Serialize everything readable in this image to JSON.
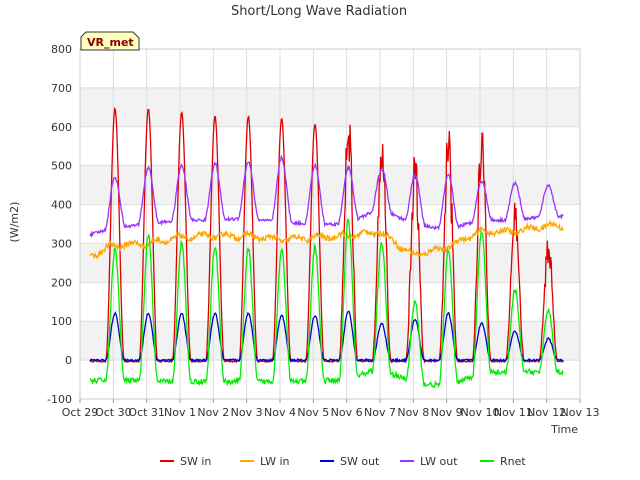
{
  "chart_data": {
    "type": "line",
    "title": "Short/Long Wave Radiation",
    "tag": "VR_met",
    "xlabel": "Time",
    "ylabel": "(W/m2)",
    "ylim": [
      -100,
      800
    ],
    "yticks": [
      -100,
      0,
      100,
      200,
      300,
      400,
      500,
      600,
      700,
      800
    ],
    "xlim": [
      0,
      15
    ],
    "xticks": [
      0,
      1,
      2,
      3,
      4,
      5,
      6,
      7,
      8,
      9,
      10,
      11,
      12,
      13,
      14,
      15
    ],
    "xtick_labels": [
      "Oct 29",
      "Oct 30",
      "Oct 31",
      "Nov 1",
      "Nov 2",
      "Nov 3",
      "Nov 4",
      "Nov 5",
      "Nov 6",
      "Nov 7",
      "Nov 8",
      "Nov 9",
      "Nov 10",
      "Nov 11",
      "Nov 12",
      "Nov 13"
    ],
    "x_data_start": 0.3,
    "x_data_end": 14.5,
    "grid": true,
    "legend_position": "bottom",
    "days": [
      1,
      2,
      3,
      4,
      5,
      6,
      7,
      8,
      9,
      10,
      11,
      12,
      13,
      14
    ],
    "series": [
      {
        "name": "SW in",
        "color": "#dd0000",
        "key": "sw_in",
        "night": -3,
        "day_peaks": [
          650,
          650,
          640,
          630,
          630,
          625,
          610,
          700,
          650,
          550,
          615,
          635,
          420,
          330
        ]
      },
      {
        "name": "LW in",
        "color": "#ffa500",
        "key": "lw_in",
        "daily_levels": [
          255,
          295,
          300,
          315,
          320,
          320,
          310,
          315,
          320,
          330,
          270,
          290,
          330,
          330,
          345
        ]
      },
      {
        "name": "SW out",
        "color": "#0000cc",
        "key": "sw_out",
        "night": 0,
        "day_peaks": [
          120,
          120,
          120,
          120,
          120,
          115,
          115,
          125,
          95,
          105,
          120,
          95,
          75,
          55
        ]
      },
      {
        "name": "LW out",
        "color": "#9933ff",
        "key": "lw_out",
        "night_levels": [
          315,
          340,
          350,
          360,
          360,
          365,
          355,
          350,
          350,
          390,
          350,
          335,
          360,
          360,
          370
        ],
        "day_peaks": [
          470,
          495,
          500,
          505,
          510,
          520,
          500,
          495,
          490,
          475,
          475,
          460,
          455,
          450
        ]
      },
      {
        "name": "Rnet",
        "color": "#00ee00",
        "key": "rnet",
        "night_levels": [
          -55,
          -50,
          -55,
          -55,
          -55,
          -55,
          -55,
          -55,
          -50,
          -20,
          -60,
          -65,
          -35,
          -30,
          -30
        ],
        "day_peaks": [
          285,
          320,
          300,
          290,
          285,
          285,
          290,
          360,
          300,
          150,
          280,
          330,
          180,
          130
        ]
      }
    ]
  }
}
